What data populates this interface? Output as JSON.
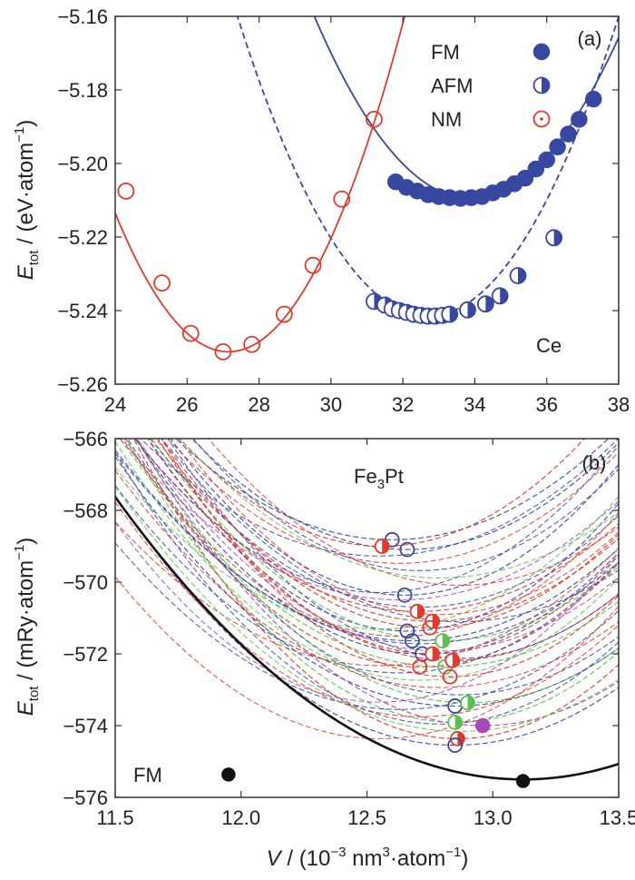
{
  "colors": {
    "blue": "#3848a0",
    "red": "#e03a2a",
    "green": "#5ec050",
    "purple": "#a848b8",
    "black": "#111111"
  },
  "chart_data": [
    {
      "panel": "(a)",
      "type": "scatter",
      "annotation": "Ce",
      "ylabel": {
        "main": "E",
        "sub": "tot",
        "rest": " / (eV·atom",
        "sup": "−1",
        "end": ")"
      },
      "xlim": [
        24,
        38
      ],
      "ylim": [
        -5.26,
        -5.16
      ],
      "xticks": [
        "24",
        "26",
        "28",
        "30",
        "32",
        "34",
        "36",
        "38"
      ],
      "yticks": [
        "−5.26",
        "−5.24",
        "−5.22",
        "−5.20",
        "−5.18",
        "−5.16"
      ],
      "series": [
        {
          "name": "FM",
          "marker": "filled",
          "color": "#3848a0",
          "curve": "solid",
          "fit": {
            "a": 0.0026,
            "v0": 33.9,
            "e0": -5.2095
          },
          "x": [
            31.8,
            32.1,
            32.4,
            32.7,
            33.0,
            33.3,
            33.6,
            33.9,
            34.2,
            34.5,
            34.8,
            35.1,
            35.4,
            35.7,
            36.0,
            36.3,
            36.6,
            36.9,
            37.3
          ],
          "y": [
            -5.205,
            -5.2065,
            -5.2075,
            -5.2085,
            -5.209,
            -5.2093,
            -5.2095,
            -5.2093,
            -5.209,
            -5.208,
            -5.207,
            -5.2055,
            -5.204,
            -5.2015,
            -5.199,
            -5.1955,
            -5.192,
            -5.188,
            -5.1825
          ]
        },
        {
          "name": "AFM",
          "marker": "half",
          "color": "#3848a0",
          "curve": "dashed",
          "fit": {
            "a": 0.0029,
            "v0": 32.7,
            "e0": -5.2415
          },
          "x": [
            31.2,
            31.5,
            31.7,
            31.9,
            32.1,
            32.3,
            32.5,
            32.7,
            32.9,
            33.1,
            33.3,
            33.8,
            34.3,
            34.7,
            35.2,
            36.2
          ],
          "y": [
            -5.2375,
            -5.2385,
            -5.2395,
            -5.24,
            -5.2405,
            -5.241,
            -5.2413,
            -5.2415,
            -5.2415,
            -5.2413,
            -5.241,
            -5.2398,
            -5.2382,
            -5.236,
            -5.2305,
            -5.2202
          ]
        },
        {
          "name": "NM",
          "marker": "open",
          "color": "#e03a2a",
          "curve": "solid",
          "fit": {
            "a": 0.0038,
            "v0": 27.15,
            "e0": -5.2512
          },
          "x": [
            24.3,
            25.3,
            26.1,
            27.0,
            27.8,
            28.7,
            29.5,
            30.3,
            31.2
          ],
          "y": [
            -5.2075,
            -5.2325,
            -5.2462,
            -5.2512,
            -5.2492,
            -5.241,
            -5.2277,
            -5.2097,
            -5.188
          ]
        }
      ]
    },
    {
      "panel": "(b)",
      "type": "scatter",
      "annotation_main": "Fe",
      "annotation_sub": "3",
      "annotation_rest": "Pt",
      "fm_label": "FM",
      "ylabel": {
        "main": "E",
        "sub": "tot",
        "rest": " / (mRy·atom",
        "sup": "−1",
        "end": ")"
      },
      "xlabel": {
        "main": "V",
        "rest": " / (10",
        "sup1": "−3",
        "mid": " nm",
        "sup2": "3",
        "mid2": "·atom",
        "sup3": "−1",
        "end": ")"
      },
      "xlim": [
        11.5,
        13.5
      ],
      "ylim": [
        -576,
        -565
      ],
      "xticks": [
        "11.5",
        "12.0",
        "12.5",
        "13.0",
        "13.5"
      ],
      "yticks": [
        "−576",
        "−574",
        "−572",
        "−570",
        "−568",
        "−566"
      ],
      "fm_curve": {
        "a": 3.3,
        "v0": 13.12,
        "e0": -575.45
      },
      "fm_points": {
        "x": [
          11.95,
          13.12
        ],
        "y": [
          -575.3,
          -575.5
        ]
      },
      "minima": [
        {
          "x": 12.6,
          "y": -568.1,
          "kind": "open",
          "color": "#3848a0"
        },
        {
          "x": 12.66,
          "y": -568.4,
          "kind": "open",
          "color": "#3848a0"
        },
        {
          "x": 12.56,
          "y": -568.3,
          "kind": "half",
          "color": "#e03a2a"
        },
        {
          "x": 12.65,
          "y": -569.8,
          "kind": "open",
          "color": "#3848a0"
        },
        {
          "x": 12.7,
          "y": -570.3,
          "kind": "half",
          "color": "#e03a2a"
        },
        {
          "x": 12.76,
          "y": -570.6,
          "kind": "half",
          "color": "#e03a2a"
        },
        {
          "x": 12.75,
          "y": -570.8,
          "kind": "open",
          "color": "#e03a2a"
        },
        {
          "x": 12.66,
          "y": -570.9,
          "kind": "open",
          "color": "#3848a0"
        },
        {
          "x": 12.68,
          "y": -571.2,
          "kind": "open",
          "color": "#3848a0"
        },
        {
          "x": 12.8,
          "y": -571.2,
          "kind": "half",
          "color": "#5ec050"
        },
        {
          "x": 12.72,
          "y": -571.6,
          "kind": "open",
          "color": "#3848a0"
        },
        {
          "x": 12.76,
          "y": -571.6,
          "kind": "half",
          "color": "#e03a2a"
        },
        {
          "x": 12.81,
          "y": -572.0,
          "kind": "open",
          "color": "#5ec050"
        },
        {
          "x": 12.84,
          "y": -571.8,
          "kind": "half",
          "color": "#e03a2a"
        },
        {
          "x": 12.71,
          "y": -572.0,
          "kind": "open",
          "color": "#e03a2a"
        },
        {
          "x": 12.83,
          "y": -572.3,
          "kind": "open",
          "color": "#e03a2a"
        },
        {
          "x": 12.85,
          "y": -573.2,
          "kind": "open",
          "color": "#3848a0"
        },
        {
          "x": 12.9,
          "y": -573.1,
          "kind": "half",
          "color": "#5ec050"
        },
        {
          "x": 12.85,
          "y": -573.7,
          "kind": "half",
          "color": "#5ec050"
        },
        {
          "x": 12.86,
          "y": -574.2,
          "kind": "half",
          "color": "#e03a2a"
        },
        {
          "x": 12.85,
          "y": -574.4,
          "kind": "open",
          "color": "#3848a0"
        },
        {
          "x": 12.96,
          "y": -573.8,
          "kind": "filled",
          "color": "#a848b8"
        }
      ]
    }
  ]
}
